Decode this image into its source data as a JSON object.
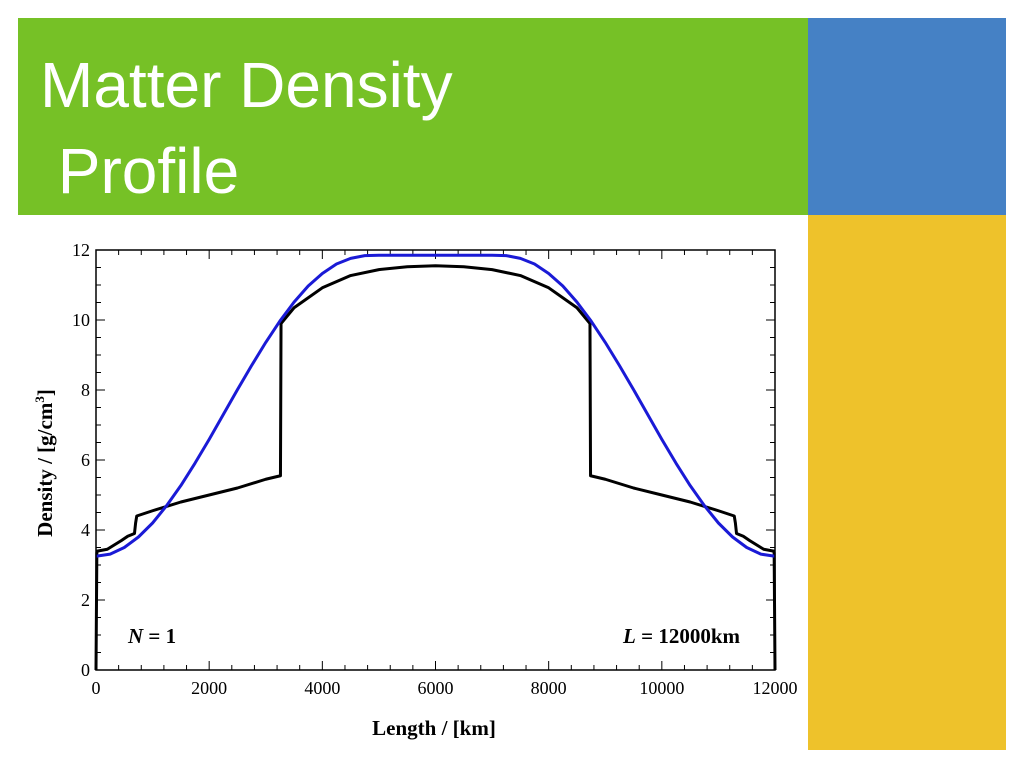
{
  "slide": {
    "title": "Matter Density\n Profile",
    "colors": {
      "title_band": "#76c126",
      "blue_block": "#4581c5",
      "gold_block": "#eec22b"
    }
  },
  "chart_data": {
    "type": "line",
    "xlabel": "Length / [km]",
    "ylabel_main": "Density / [g/cm",
    "ylabel_sup": "3",
    "ylabel_tail": "]",
    "xlim": [
      0,
      12000
    ],
    "ylim": [
      0,
      12
    ],
    "xticks": [
      0,
      2000,
      4000,
      6000,
      8000,
      10000,
      12000
    ],
    "yticks": [
      0,
      2,
      4,
      6,
      8,
      10,
      12
    ],
    "xtick_labels": [
      "0",
      "2000",
      "4000",
      "6000",
      "8000",
      "10000",
      "12000"
    ],
    "ytick_labels": [
      "0",
      "2",
      "4",
      "6",
      "8",
      "10",
      "12"
    ],
    "annotations": {
      "left_var": "N",
      "left_rest": " = 1",
      "right_var": "L",
      "right_rest": " = 12000km"
    },
    "series": [
      {
        "color": "#000000",
        "x": [
          0,
          15,
          25,
          35,
          200,
          300,
          400,
          450,
          560,
          680,
          700,
          720,
          1000,
          1500,
          2000,
          2500,
          3000,
          3260,
          3270,
          3500,
          4000,
          4500,
          5000,
          5500,
          6000,
          6500,
          7000,
          7500,
          8000,
          8500,
          8730,
          8740,
          9000,
          9500,
          10000,
          10500,
          11000,
          11280,
          11300,
          11320,
          11440,
          11550,
          11600,
          11700,
          11800,
          11965,
          11975,
          11985,
          12000
        ],
        "y": [
          0.0,
          3.35,
          3.4,
          3.4,
          3.45,
          3.55,
          3.65,
          3.7,
          3.82,
          3.9,
          4.2,
          4.4,
          4.55,
          4.8,
          5.0,
          5.2,
          5.45,
          5.55,
          9.9,
          10.35,
          10.92,
          11.27,
          11.44,
          11.52,
          11.55,
          11.52,
          11.44,
          11.27,
          10.92,
          10.35,
          9.9,
          5.55,
          5.45,
          5.2,
          5.0,
          4.8,
          4.55,
          4.4,
          4.2,
          3.9,
          3.82,
          3.7,
          3.65,
          3.55,
          3.45,
          3.4,
          3.4,
          3.35,
          0.0
        ]
      },
      {
        "color": "#1a1ad6",
        "x": [
          0,
          250,
          500,
          750,
          1000,
          1250,
          1500,
          1750,
          2000,
          2250,
          2500,
          2750,
          3000,
          3250,
          3500,
          3750,
          4000,
          4250,
          4500,
          4750,
          5000,
          5250,
          5500,
          5750,
          6000,
          6250,
          6500,
          6750,
          7000,
          7250,
          7500,
          7750,
          8000,
          8250,
          8500,
          8750,
          9000,
          9250,
          9500,
          9750,
          10000,
          10250,
          10500,
          10750,
          11000,
          11250,
          11500,
          11750,
          12000
        ],
        "y": [
          3.25,
          3.31,
          3.5,
          3.8,
          4.2,
          4.7,
          5.27,
          5.91,
          6.59,
          7.3,
          8.01,
          8.7,
          9.36,
          9.97,
          10.51,
          10.97,
          11.33,
          11.6,
          11.76,
          11.84,
          11.85,
          11.85,
          11.85,
          11.85,
          11.85,
          11.85,
          11.85,
          11.85,
          11.85,
          11.84,
          11.76,
          11.6,
          11.33,
          10.97,
          10.51,
          9.97,
          9.36,
          8.7,
          8.01,
          7.3,
          6.59,
          5.91,
          5.27,
          4.7,
          4.2,
          3.8,
          3.5,
          3.31,
          3.25
        ]
      }
    ]
  }
}
